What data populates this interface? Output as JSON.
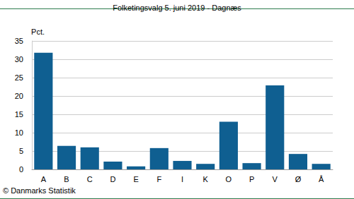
{
  "chart_data": {
    "type": "bar",
    "title": "Folketingsvalg 5. juni 2019 - Dagnæs",
    "y_label": "Pct.",
    "annotations": [
      "© Danmarks Statistik"
    ],
    "categories": [
      "A",
      "B",
      "C",
      "D",
      "E",
      "F",
      "I",
      "K",
      "O",
      "P",
      "V",
      "Ø",
      "Å"
    ],
    "values": [
      31.8,
      6.4,
      6.0,
      2.1,
      0.8,
      5.8,
      2.3,
      1.5,
      13.0,
      1.7,
      22.9,
      4.2,
      1.5
    ],
    "color": "#0f5f91",
    "ylim": [
      0,
      35
    ],
    "yticks": [
      0,
      5,
      10,
      15,
      20,
      25,
      30,
      35
    ],
    "grid": true
  }
}
